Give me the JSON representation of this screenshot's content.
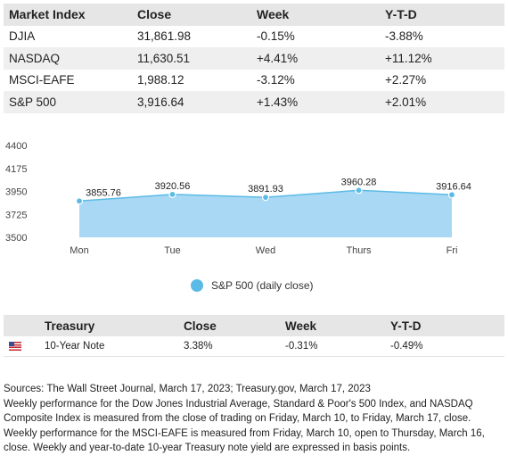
{
  "market_table": {
    "headers": [
      "Market Index",
      "Close",
      "Week",
      "Y-T-D"
    ],
    "rows": [
      [
        "DJIA",
        "31,861.98",
        "-0.15%",
        "-3.88%"
      ],
      [
        "NASDAQ",
        "11,630.51",
        "+4.41%",
        "+11.12%"
      ],
      [
        "MSCI-EAFE",
        "1,988.12",
        "-3.12%",
        "+2.27%"
      ],
      [
        "S&P 500",
        "3,916.64",
        "+1.43%",
        "+2.01%"
      ]
    ]
  },
  "chart_data": {
    "type": "area",
    "categories": [
      "Mon",
      "Tue",
      "Wed",
      "Thurs",
      "Fri"
    ],
    "series": [
      {
        "name": "S&P 500 (daily close)",
        "values": [
          3855.76,
          3920.56,
          3891.93,
          3960.28,
          3916.64
        ]
      }
    ],
    "data_labels": [
      "3855.76",
      "3920.56",
      "3891.93",
      "3960.28",
      "3916.64"
    ],
    "y_ticks": [
      3500,
      3725,
      3950,
      4175,
      4400
    ],
    "ylim": [
      3500,
      4400
    ],
    "grid": false,
    "legend": "bottom-center",
    "color": "#5bbbe6",
    "fill_color": "#a8d8f3"
  },
  "treasury_table": {
    "headers": [
      "",
      "Treasury",
      "Close",
      "Week",
      "Y-T-D"
    ],
    "rows": [
      {
        "flag": "us-flag-icon",
        "name": "10-Year Note",
        "close": "3.38%",
        "week": "-0.31%",
        "ytd": "-0.49%"
      }
    ]
  },
  "sources": {
    "line1": "Sources: The Wall Street Journal, March 17, 2023; Treasury.gov, March 17, 2023",
    "line2": "Weekly performance for the Dow Jones Industrial Average, Standard & Poor's 500 Index, and NASDAQ Composite Index is measured from the close of trading on Friday, March 10, to Friday, March 17, close. Weekly performance for the MSCI-EAFE is measured from Friday, March 10, open to Thursday, March 16, close. Weekly and year-to-date 10-year Treasury note yield are expressed in basis points."
  }
}
